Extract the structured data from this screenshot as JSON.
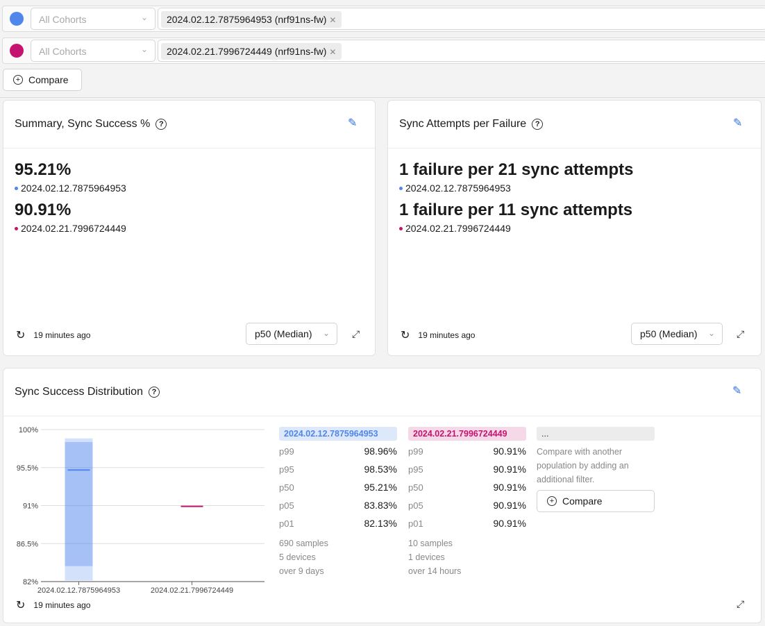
{
  "filters": [
    {
      "color": "#4f86ec",
      "cohort": "All Cohorts",
      "tag": "2024.02.12.7875964953 (nrf91ns-fw)"
    },
    {
      "color": "#c41470",
      "cohort": "All Cohorts",
      "tag": "2024.02.21.7996724449 (nrf91ns-fw)"
    }
  ],
  "compare_label": "Compare",
  "summary": {
    "title": "Summary, Sync Success %",
    "values": [
      {
        "value": "95.21%",
        "label": "2024.02.12.7875964953"
      },
      {
        "value": "90.91%",
        "label": "2024.02.21.7996724449"
      }
    ],
    "updated": "19 minutes ago",
    "aggregation": "p50 (Median)"
  },
  "attempts": {
    "title": "Sync Attempts per Failure",
    "values": [
      {
        "value": "1 failure per 21 sync attempts",
        "label": "2024.02.12.7875964953"
      },
      {
        "value": "1 failure per 11 sync attempts",
        "label": "2024.02.21.7996724449"
      }
    ],
    "updated": "19 minutes ago",
    "aggregation": "p50 (Median)"
  },
  "distribution": {
    "title": "Sync Success Distribution",
    "updated": "19 minutes ago",
    "columns": [
      {
        "name": "2024.02.12.7875964953",
        "rows": [
          [
            "p99",
            "98.96%"
          ],
          [
            "p95",
            "98.53%"
          ],
          [
            "p50",
            "95.21%"
          ],
          [
            "p05",
            "83.83%"
          ],
          [
            "p01",
            "82.13%"
          ]
        ],
        "samples": "690 samples",
        "devices": "5 devices",
        "span": "over 9 days"
      },
      {
        "name": "2024.02.21.7996724449",
        "rows": [
          [
            "p99",
            "90.91%"
          ],
          [
            "p95",
            "90.91%"
          ],
          [
            "p50",
            "90.91%"
          ],
          [
            "p05",
            "90.91%"
          ],
          [
            "p01",
            "90.91%"
          ]
        ],
        "samples": "10 samples",
        "devices": "1 devices",
        "span": "over 14 hours"
      }
    ],
    "placeholder": {
      "head": "...",
      "text": "Compare with another population by adding an additional filter.",
      "button": "Compare"
    }
  },
  "chart_data": {
    "type": "box",
    "categories": [
      "2024.02.12.7875964953",
      "2024.02.21.7996724449"
    ],
    "yticks": [
      "100%",
      "95.5%",
      "91%",
      "86.5%",
      "82%"
    ],
    "ylim": [
      82,
      100
    ],
    "grid": true,
    "series": [
      {
        "p01": 82.13,
        "p05": 83.83,
        "p50": 95.21,
        "p95": 98.53,
        "p99": 98.96,
        "color": "#4f86ec"
      },
      {
        "p01": 90.91,
        "p05": 90.91,
        "p50": 90.91,
        "p95": 90.91,
        "p99": 90.91,
        "color": "#c41470"
      }
    ]
  }
}
